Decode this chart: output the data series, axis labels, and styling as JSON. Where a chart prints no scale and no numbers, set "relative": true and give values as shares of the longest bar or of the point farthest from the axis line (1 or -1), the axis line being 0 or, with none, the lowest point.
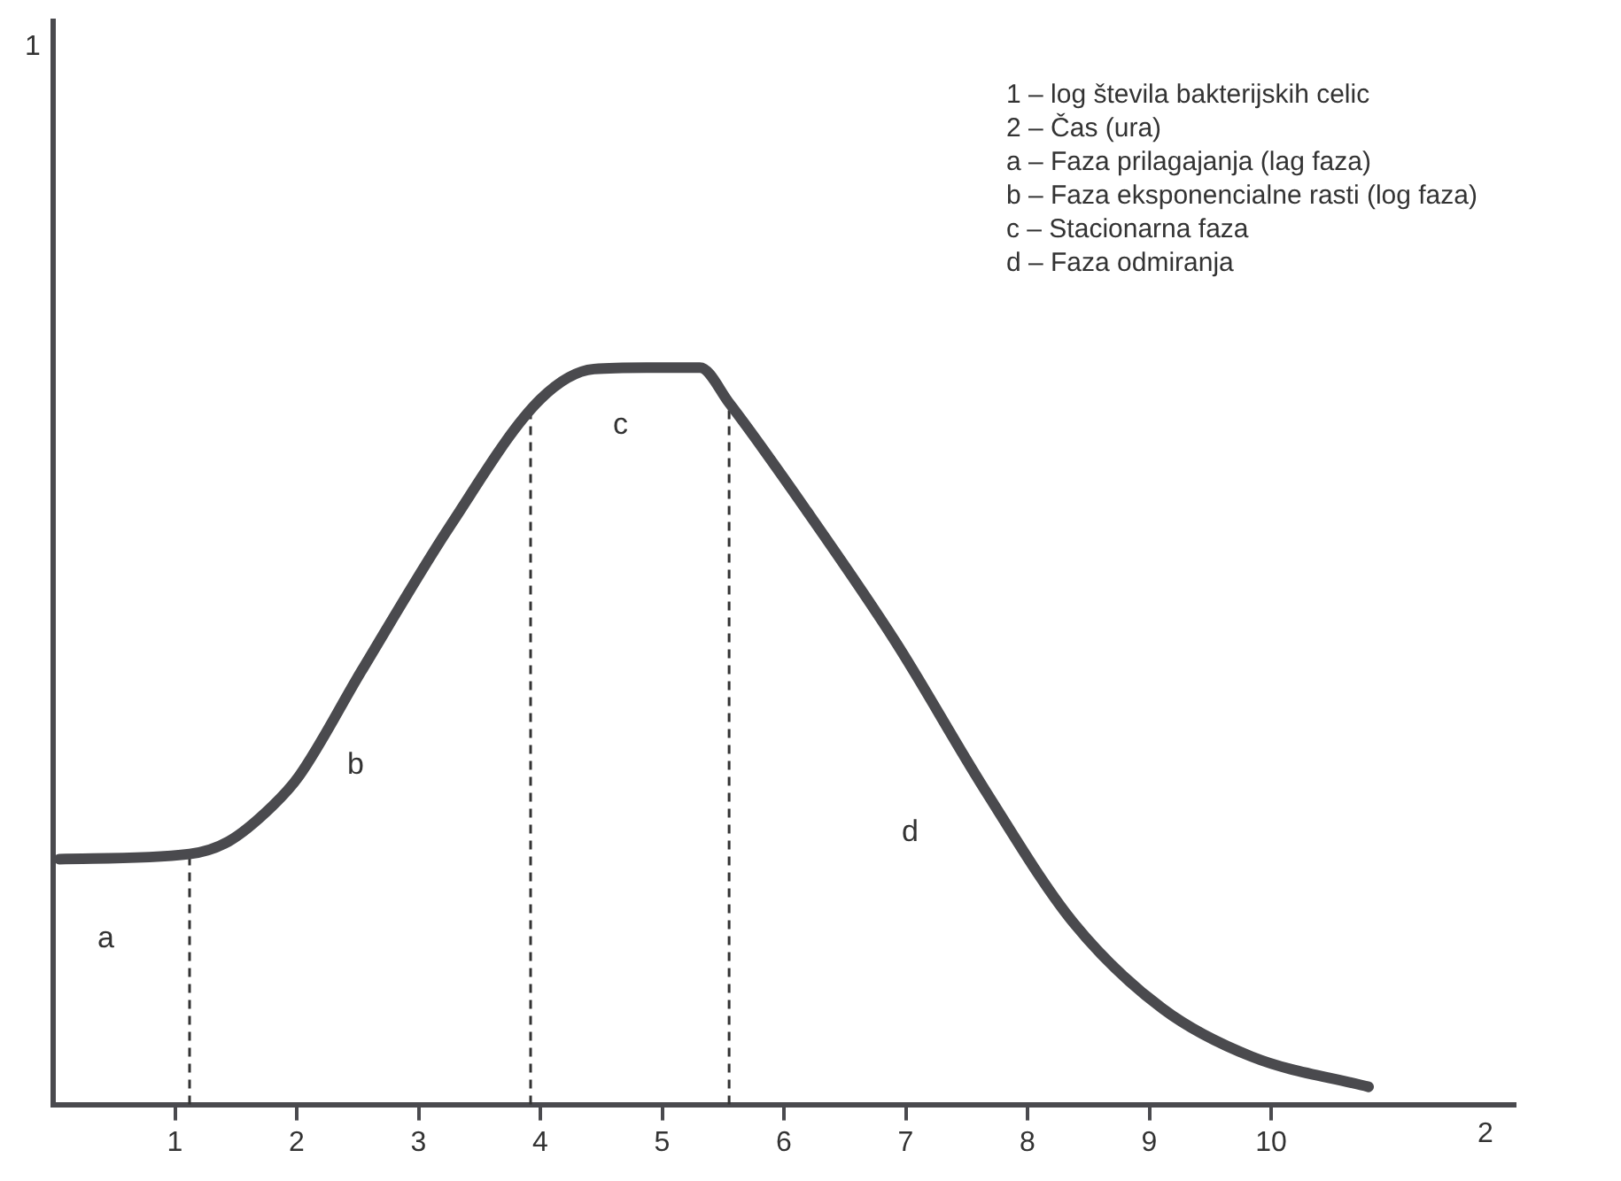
{
  "chart_data": {
    "type": "line",
    "relative": true,
    "xlabel": "2",
    "xlim": [
      0,
      12
    ],
    "xticks": [
      1,
      2,
      3,
      4,
      5,
      6,
      7,
      8,
      9,
      10
    ],
    "series": [
      {
        "color": "#4a4a4e",
        "x": [
          0.05,
          1.12,
          1.44,
          1.8,
          2.02,
          2.53,
          3.27,
          4.0,
          4.44,
          4.87,
          5.31,
          5.55,
          6.19,
          6.92,
          7.65,
          8.38,
          9.11,
          9.84,
          10.8
        ],
        "values": [
          0.333,
          0.34,
          0.357,
          0.405,
          0.446,
          0.588,
          0.788,
          0.957,
          0.998,
          1.0,
          1.0,
          0.952,
          0.805,
          0.627,
          0.427,
          0.246,
          0.13,
          0.065,
          0.024
        ]
      }
    ],
    "ref_lines": [
      {
        "axis": "x",
        "value": 1.12,
        "line_style": "dashed",
        "color": "#333333"
      },
      {
        "axis": "x",
        "value": 3.92,
        "line_style": "dashed",
        "color": "#333333"
      },
      {
        "axis": "x",
        "value": 5.55,
        "line_style": "dashed",
        "color": "#333333"
      }
    ],
    "annotations": [
      "1 – log števila bakterijskih celic",
      "2 – Čas (ura)",
      "a – Faza prilagajanja (lag faza)",
      "b – Faza eksponencialne rasti (log faza)",
      "c – Stacionarna faza",
      "d – Faza odmiranja",
      "a",
      "b",
      "c",
      "d",
      "1"
    ],
    "grid": false,
    "legend": false,
    "marker": "none",
    "line_style": "solid"
  }
}
